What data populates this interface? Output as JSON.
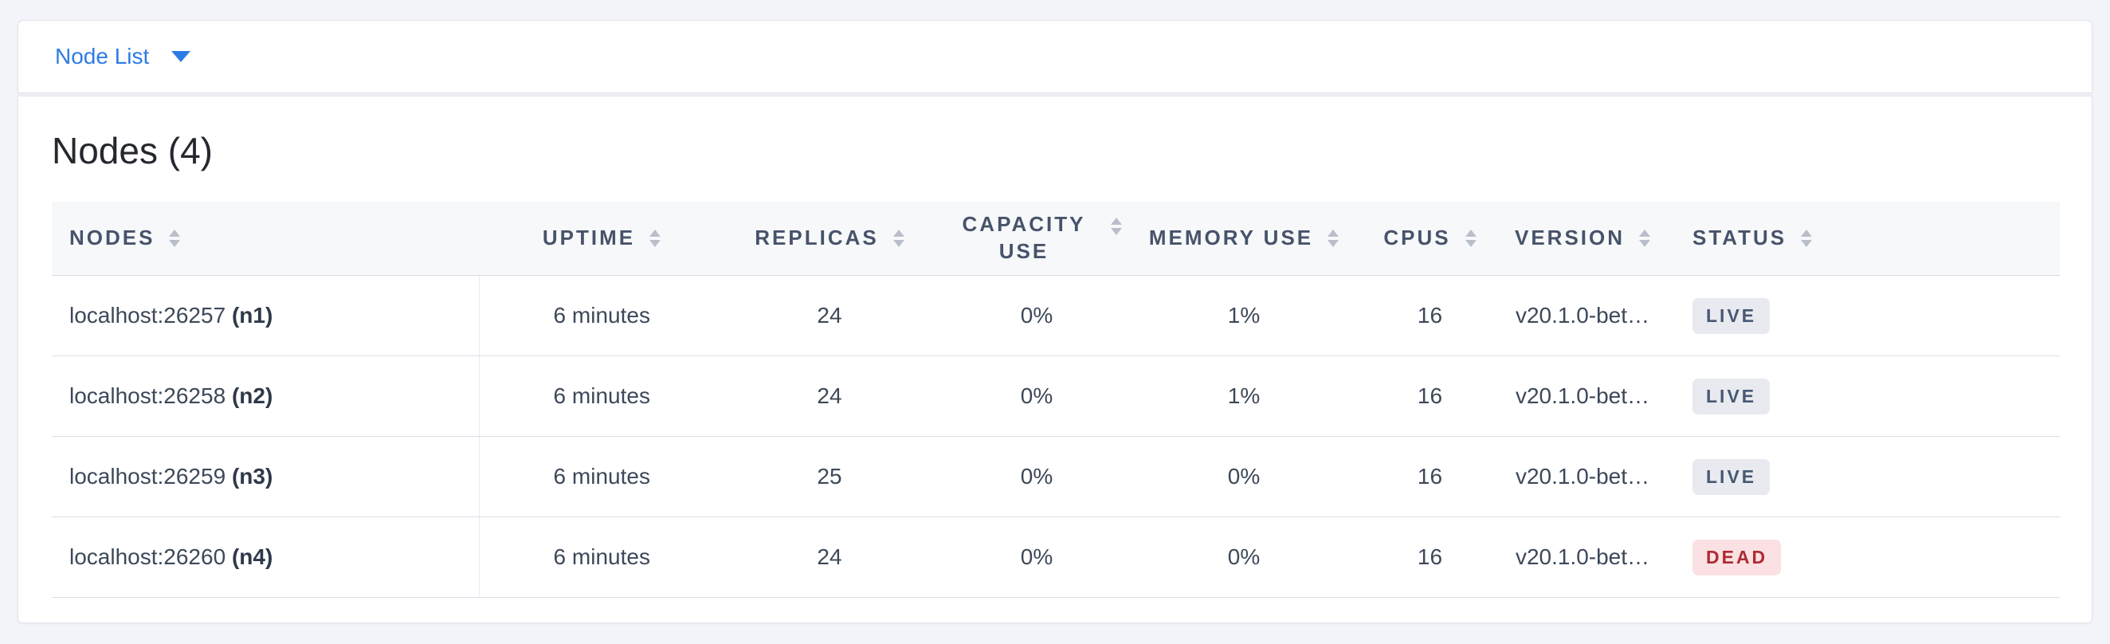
{
  "toolbar": {
    "view_selector_label": "Node List"
  },
  "panel": {
    "title": "Nodes (4)"
  },
  "table": {
    "columns": [
      {
        "id": "nodes",
        "label": "Nodes"
      },
      {
        "id": "uptime",
        "label": "Uptime"
      },
      {
        "id": "replicas",
        "label": "Replicas"
      },
      {
        "id": "capacity_use",
        "label": "Capacity Use"
      },
      {
        "id": "memory_use",
        "label": "Memory Use"
      },
      {
        "id": "cpus",
        "label": "CPUs"
      },
      {
        "id": "version",
        "label": "Version"
      },
      {
        "id": "status",
        "label": "Status"
      }
    ],
    "rows": [
      {
        "address": "localhost:26257",
        "node_id": "(n1)",
        "uptime": "6 minutes",
        "replicas": "24",
        "capacity_use": "0%",
        "memory_use": "1%",
        "cpus": "16",
        "version": "v20.1.0-bet…",
        "status": "LIVE"
      },
      {
        "address": "localhost:26258",
        "node_id": "(n2)",
        "uptime": "6 minutes",
        "replicas": "24",
        "capacity_use": "0%",
        "memory_use": "1%",
        "cpus": "16",
        "version": "v20.1.0-bet…",
        "status": "LIVE"
      },
      {
        "address": "localhost:26259",
        "node_id": "(n3)",
        "uptime": "6 minutes",
        "replicas": "25",
        "capacity_use": "0%",
        "memory_use": "0%",
        "cpus": "16",
        "version": "v20.1.0-bet…",
        "status": "LIVE"
      },
      {
        "address": "localhost:26260",
        "node_id": "(n4)",
        "uptime": "6 minutes",
        "replicas": "24",
        "capacity_use": "0%",
        "memory_use": "0%",
        "cpus": "16",
        "version": "v20.1.0-bet…",
        "status": "DEAD"
      }
    ]
  },
  "colors": {
    "accent_blue": "#2d7ce5",
    "live_badge_bg": "#e8eaf0",
    "live_badge_text": "#475872",
    "dead_badge_bg": "#fbe1e3",
    "dead_badge_text": "#ae2a33"
  }
}
